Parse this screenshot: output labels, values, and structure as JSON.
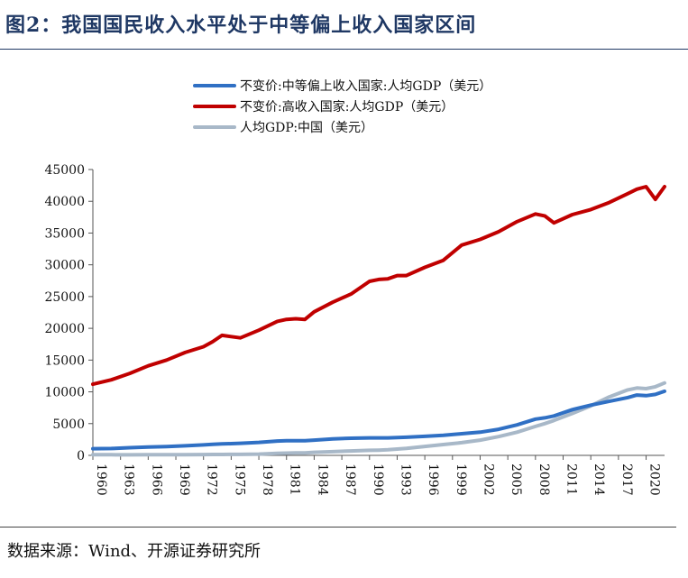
{
  "title": "图2：我国国民收入水平处于中等偏上收入国家区间",
  "source": "数据来源：Wind、开源证券研究所",
  "chart_data": {
    "type": "line",
    "ylim": [
      0,
      45000
    ],
    "yticks": [
      0,
      5000,
      10000,
      15000,
      20000,
      25000,
      30000,
      35000,
      40000,
      45000
    ],
    "xlim": [
      1960,
      2022
    ],
    "xticks": [
      1960,
      1963,
      1966,
      1969,
      1972,
      1975,
      1978,
      1981,
      1984,
      1987,
      1990,
      1993,
      1996,
      1999,
      2002,
      2005,
      2008,
      2011,
      2014,
      2017,
      2020
    ],
    "grid": false,
    "legend_position": "top",
    "x": [
      1960,
      1962,
      1964,
      1966,
      1968,
      1970,
      1972,
      1973,
      1974,
      1975,
      1976,
      1978,
      1980,
      1981,
      1982,
      1983,
      1984,
      1986,
      1988,
      1990,
      1991,
      1992,
      1993,
      1994,
      1996,
      1998,
      2000,
      2002,
      2004,
      2006,
      2008,
      2009,
      2010,
      2012,
      2014,
      2016,
      2018,
      2019,
      2020,
      2021,
      2022
    ],
    "series": [
      {
        "name": "不变价:中等偏上收入国家:人均GDP（美元）",
        "color": "#3070c4",
        "values": [
          1050,
          1080,
          1200,
          1300,
          1380,
          1500,
          1650,
          1750,
          1800,
          1850,
          1900,
          2050,
          2250,
          2300,
          2300,
          2300,
          2400,
          2600,
          2700,
          2750,
          2750,
          2760,
          2800,
          2850,
          3000,
          3150,
          3400,
          3650,
          4100,
          4800,
          5700,
          5900,
          6200,
          7200,
          7900,
          8500,
          9100,
          9500,
          9400,
          9600,
          10100
        ]
      },
      {
        "name": "不变价:高收入国家:人均GDP（美元）",
        "color": "#c00000",
        "values": [
          11200,
          11900,
          12900,
          14100,
          15000,
          16200,
          17100,
          17900,
          18900,
          18700,
          18500,
          19700,
          21100,
          21400,
          21500,
          21400,
          22600,
          24100,
          25400,
          27400,
          27700,
          27800,
          28300,
          28300,
          29600,
          30700,
          33100,
          34000,
          35200,
          36800,
          38000,
          37700,
          36600,
          37900,
          38700,
          39800,
          41200,
          41900,
          42300,
          40300,
          42300
        ]
      },
      {
        "name": "人均GDP:中国（美元）",
        "color": "#a8b8c8",
        "values": [
          120,
          100,
          90,
          110,
          110,
          115,
          125,
          140,
          145,
          155,
          160,
          200,
          320,
          350,
          380,
          400,
          480,
          580,
          700,
          800,
          820,
          880,
          1000,
          1100,
          1400,
          1700,
          2000,
          2400,
          2950,
          3650,
          4550,
          5000,
          5500,
          6600,
          7800,
          9200,
          10300,
          10600,
          10500,
          10800,
          11400
        ]
      }
    ]
  }
}
